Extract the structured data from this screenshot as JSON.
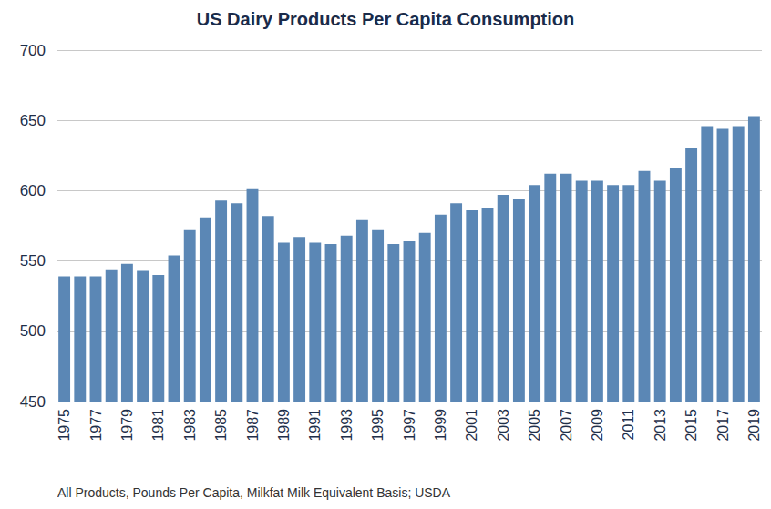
{
  "chart_data": {
    "type": "bar",
    "title": "US Dairy Products Per Capita Consumption",
    "source": "All Products, Pounds Per Capita, Milkfat Milk Equivalent Basis; USDA",
    "categories": [
      "1975",
      null,
      "1977",
      null,
      "1979",
      null,
      "1981",
      null,
      "1983",
      null,
      "1985",
      null,
      "1987",
      null,
      "1989",
      null,
      "1991",
      null,
      "1993",
      null,
      "1995",
      null,
      "1997",
      null,
      "1999",
      null,
      "2001",
      null,
      "2003",
      null,
      "2005",
      null,
      "2007",
      null,
      "2009",
      null,
      "2011",
      null,
      "2013",
      null,
      "2015",
      null,
      "2017",
      null,
      "2019"
    ],
    "values": [
      539,
      539,
      539,
      544,
      548,
      543,
      540,
      554,
      572,
      581,
      593,
      591,
      601,
      582,
      563,
      567,
      563,
      562,
      568,
      579,
      572,
      562,
      564,
      570,
      583,
      591,
      586,
      588,
      597,
      594,
      604,
      612,
      612,
      607,
      607,
      604,
      604,
      614,
      607,
      616,
      630,
      646,
      644,
      646,
      653
    ],
    "color": "#5b87b5",
    "ylim": [
      450,
      700
    ],
    "yticks": [
      450,
      500,
      550,
      600,
      650,
      700
    ],
    "grid": true
  }
}
